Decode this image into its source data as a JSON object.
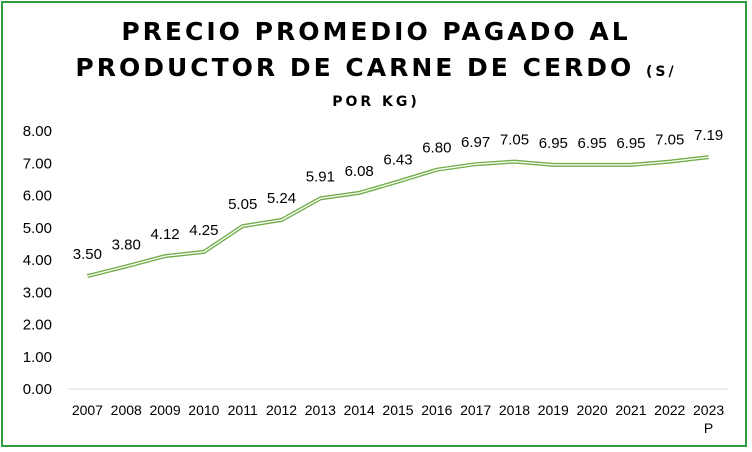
{
  "chart_data": {
    "type": "line",
    "title_line1": "PRECIO PROMEDIO PAGADO AL",
    "title_line2": "PRODUCTOR DE CARNE DE CERDO",
    "title_unit_a": "(S/",
    "title_unit_b": "POR KG)",
    "categories": [
      "2007",
      "2008",
      "2009",
      "2010",
      "2011",
      "2012",
      "2013",
      "2014",
      "2015",
      "2016",
      "2017",
      "2018",
      "2019",
      "2020",
      "2021",
      "2022",
      "2023"
    ],
    "category_suffix": {
      "2023": "P"
    },
    "values": [
      3.5,
      3.8,
      4.12,
      4.25,
      5.05,
      5.24,
      5.91,
      6.08,
      6.43,
      6.8,
      6.97,
      7.05,
      6.95,
      6.95,
      6.95,
      7.05,
      7.19
    ],
    "data_labels": [
      "3.50",
      "3.80",
      "4.12",
      "4.25",
      "5.05",
      "5.24",
      "5.91",
      "6.08",
      "6.43",
      "6.80",
      "6.97",
      "7.05",
      "6.95",
      "6.95",
      "6.95",
      "7.05",
      "7.19"
    ],
    "y_ticks": [
      "0.00",
      "1.00",
      "2.00",
      "3.00",
      "4.00",
      "5.00",
      "6.00",
      "7.00",
      "8.00"
    ],
    "ylim": [
      0,
      8
    ],
    "grid": false,
    "legend": "none",
    "colors": {
      "line": "#70ad47",
      "border": "#2f9e3a",
      "axis": "#d9d9d9"
    }
  }
}
